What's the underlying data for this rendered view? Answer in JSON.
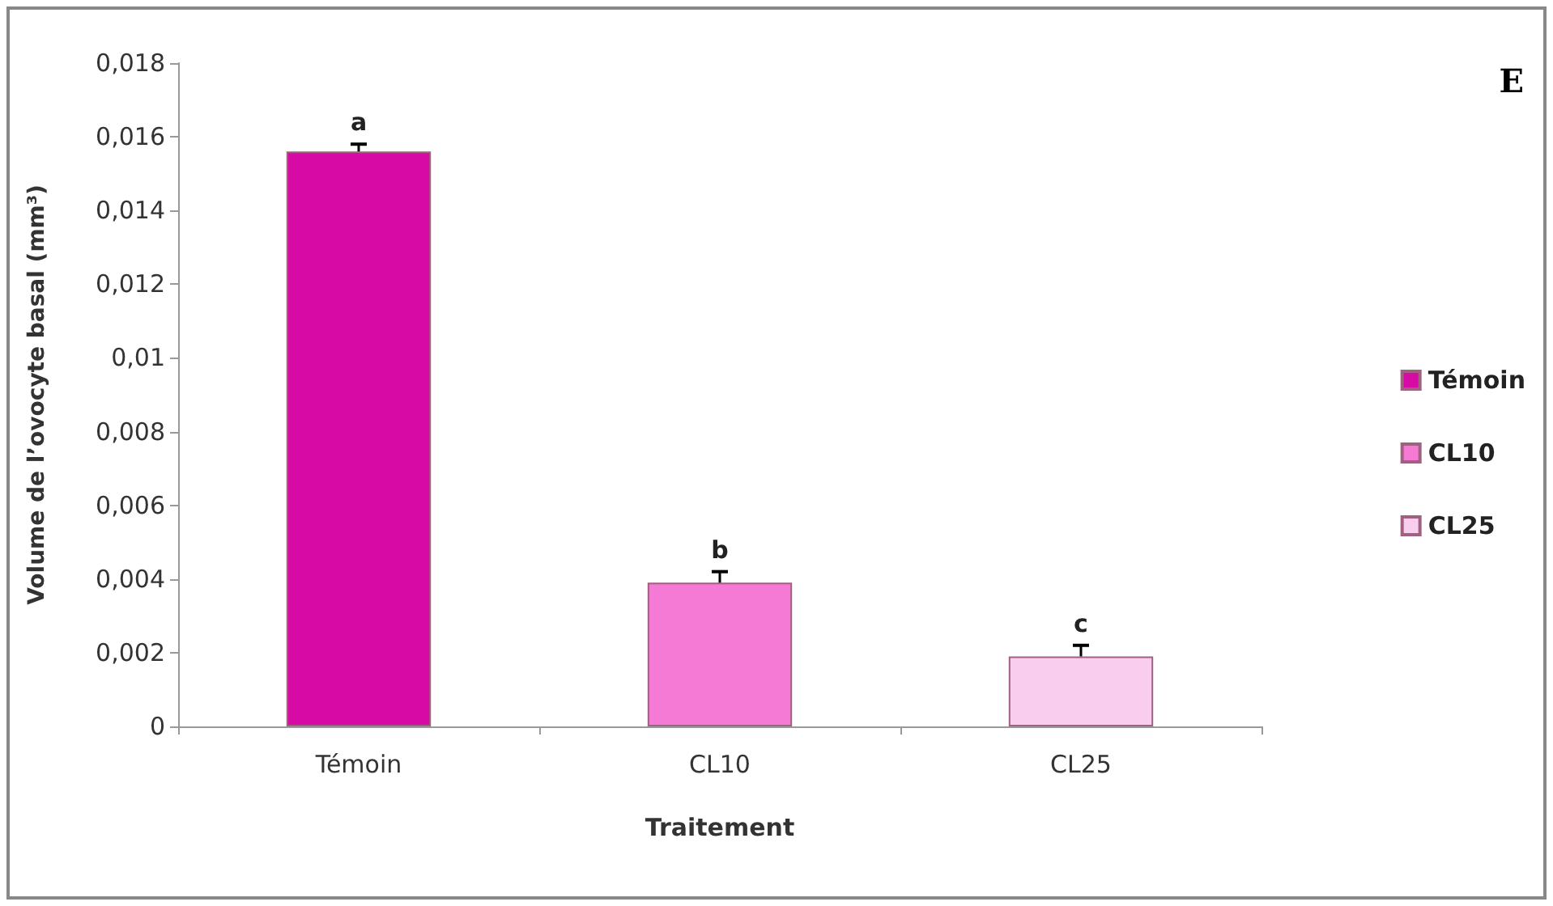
{
  "chart_data": {
    "type": "bar",
    "xlabel": "Traitement",
    "ylabel": "Volume de l’ovocyte basal (mm³)",
    "categories": [
      "Témoin",
      "CL10",
      "CL25"
    ],
    "series": [
      {
        "name": "Témoin",
        "color": "#d80aa6",
        "values": [
          0.0156,
          null,
          null
        ],
        "errors": [
          0.0002,
          null,
          null
        ]
      },
      {
        "name": "CL10",
        "color": "#f47ad6",
        "values": [
          null,
          0.0039,
          null
        ],
        "errors": [
          null,
          0.0003,
          null
        ]
      },
      {
        "name": "CL25",
        "color": "#f9cdee",
        "values": [
          null,
          null,
          0.0019
        ],
        "errors": [
          null,
          null,
          0.0003
        ]
      }
    ],
    "stacked": true,
    "ylim": [
      0,
      0.018
    ],
    "yticks": [
      0,
      {
        "value": 0.002,
        "label": "0,002"
      },
      {
        "value": 0.004,
        "label": "0,004"
      },
      {
        "value": 0.006,
        "label": "0,006"
      },
      {
        "value": 0.008,
        "label": "0,008"
      },
      {
        "value": 0.01,
        "label": "0,01"
      },
      {
        "value": 0.012,
        "label": "0,012"
      },
      {
        "value": 0.014,
        "label": "0,014"
      },
      {
        "value": 0.016,
        "label": "0,016"
      },
      {
        "value": 0.018,
        "label": "0,018"
      }
    ],
    "grid": false,
    "legend": "right",
    "annotations": [
      {
        "text": "a",
        "x": "Témoin",
        "y": 0.0158
      },
      {
        "text": "b",
        "x": "CL10",
        "y": 0.0042
      },
      {
        "text": "c",
        "x": "CL25",
        "y": 0.0022
      },
      "E"
    ]
  }
}
